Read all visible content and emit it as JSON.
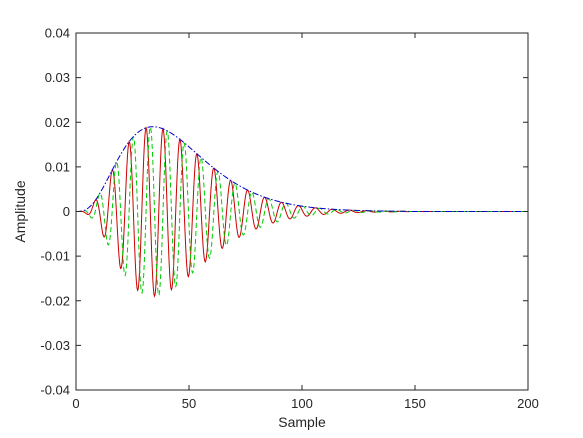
{
  "chart_data": {
    "type": "line",
    "title": "",
    "xlabel": "Sample",
    "ylabel": "Amplitude",
    "xlim": [
      0,
      200
    ],
    "ylim": [
      -0.04,
      0.04
    ],
    "x_ticks": [
      "0",
      "50",
      "100",
      "150",
      "200"
    ],
    "y_ticks": [
      "0.04",
      "0.03",
      "0.02",
      "0.01",
      "0",
      "-0.01",
      "-0.02",
      "-0.03",
      "-0.04"
    ],
    "grid": false,
    "legend": "none",
    "pulse": {
      "peak_sample": 34,
      "peak_amplitude": 0.019,
      "period_samples": 7.5,
      "decay_end_sample": 145
    },
    "series": [
      {
        "style": "solid",
        "color": "#cc0000",
        "description": "in-phase component"
      },
      {
        "style": "dashed",
        "color": "#00cc00",
        "description": "quadrature component"
      },
      {
        "style": "dash-dot",
        "color": "#0000cc",
        "description": "envelope"
      }
    ]
  }
}
